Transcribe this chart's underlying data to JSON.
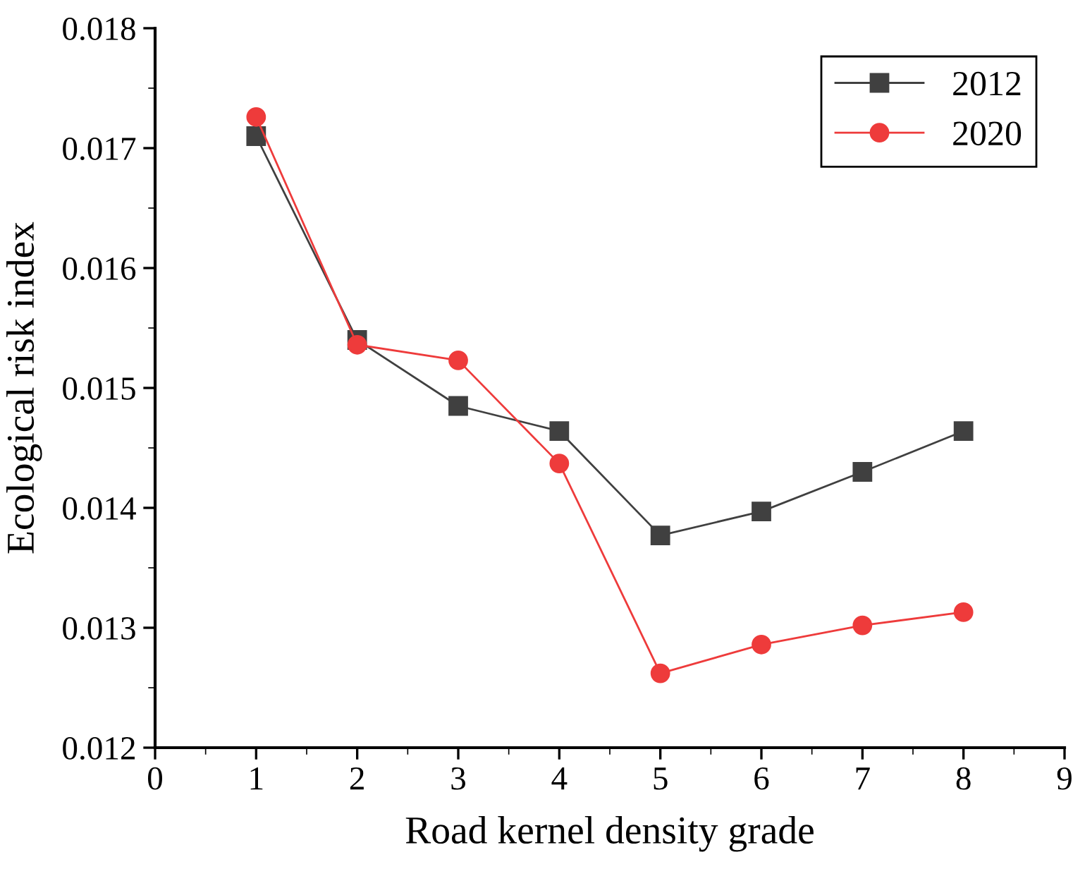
{
  "chart_data": {
    "type": "line",
    "xlabel": "Road kernel density grade",
    "ylabel": "Ecological risk index",
    "x": [
      1,
      2,
      3,
      4,
      5,
      6,
      7,
      8
    ],
    "series": [
      {
        "name": "2012",
        "color": "#404040",
        "marker": "square",
        "values": [
          0.0171,
          0.0154,
          0.01485,
          0.01464,
          0.01377,
          0.01397,
          0.0143,
          0.01464
        ]
      },
      {
        "name": "2020",
        "color": "#ee3b3b",
        "marker": "circle",
        "values": [
          0.01726,
          0.01536,
          0.01523,
          0.01437,
          0.01262,
          0.01286,
          0.01302,
          0.01313
        ]
      }
    ],
    "xlim": [
      0,
      9
    ],
    "xticks": [
      0,
      1,
      2,
      3,
      4,
      5,
      6,
      7,
      8,
      9
    ],
    "ylim": [
      0.012,
      0.018
    ],
    "yticks": [
      {
        "value": 0.012,
        "label": "0.012"
      },
      {
        "value": 0.013,
        "label": "0.013"
      },
      {
        "value": 0.014,
        "label": "0.014"
      },
      {
        "value": 0.015,
        "label": "0.015"
      },
      {
        "value": 0.016,
        "label": "0.016"
      },
      {
        "value": 0.017,
        "label": "0.017"
      },
      {
        "value": 0.018,
        "label": "0.018"
      }
    ],
    "grid": false,
    "legend": "top right"
  }
}
